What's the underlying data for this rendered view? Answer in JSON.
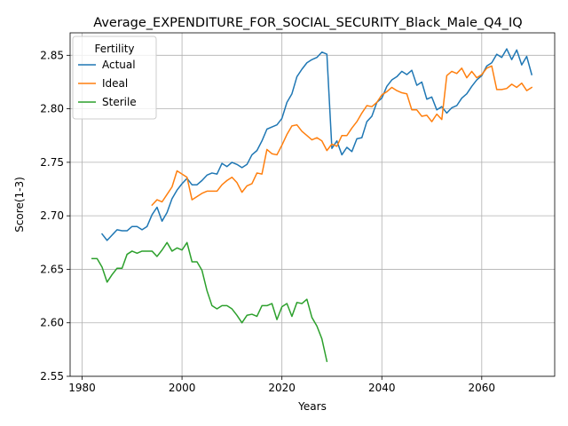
{
  "chart_data": {
    "type": "line",
    "title": "Average_EXPENDITURE_FOR_SOCIAL_SECURITY_Black_Male_Q4_IQ",
    "xlabel": "Years",
    "ylabel": "Score(1-3)",
    "xlim": [
      1977.6,
      2074.6
    ],
    "ylim": [
      2.55,
      2.871
    ],
    "xticks": [
      1980,
      2000,
      2020,
      2040,
      2060
    ],
    "yticks": [
      2.55,
      2.6,
      2.65,
      2.7,
      2.75,
      2.8,
      2.85
    ],
    "ytick_labels": [
      "2.55",
      "2.60",
      "2.65",
      "2.70",
      "2.75",
      "2.80",
      "2.85"
    ],
    "grid": true,
    "legend": {
      "title": "Fertility",
      "position": "top-left"
    },
    "series": [
      {
        "name": "Actual",
        "color": "#1f77b4",
        "x": [
          1984,
          1985,
          1986,
          1987,
          1988,
          1989,
          1990,
          1991,
          1992,
          1993,
          1994,
          1995,
          1996,
          1997,
          1998,
          1999,
          2000,
          2001,
          2002,
          2003,
          2004,
          2005,
          2006,
          2007,
          2008,
          2009,
          2010,
          2011,
          2012,
          2013,
          2014,
          2015,
          2016,
          2017,
          2018,
          2019,
          2020,
          2021,
          2022,
          2023,
          2024,
          2025,
          2026,
          2027,
          2028,
          2029,
          2030,
          2031,
          2032,
          2033,
          2034,
          2035,
          2036,
          2037,
          2038,
          2039,
          2040,
          2041,
          2042,
          2043,
          2044,
          2045,
          2046,
          2047,
          2048,
          2049,
          2050,
          2051,
          2052,
          2053,
          2054,
          2055,
          2056,
          2057,
          2058,
          2059,
          2060,
          2061,
          2062,
          2063,
          2064,
          2065,
          2066,
          2067,
          2068,
          2069,
          2070
        ],
        "values": [
          2.683,
          2.677,
          2.682,
          2.687,
          2.686,
          2.686,
          2.69,
          2.69,
          2.687,
          2.69,
          2.701,
          2.708,
          2.695,
          2.703,
          2.716,
          2.724,
          2.73,
          2.735,
          2.729,
          2.729,
          2.733,
          2.738,
          2.74,
          2.739,
          2.749,
          2.746,
          2.75,
          2.748,
          2.745,
          2.748,
          2.757,
          2.761,
          2.77,
          2.781,
          2.783,
          2.785,
          2.791,
          2.806,
          2.814,
          2.83,
          2.837,
          2.843,
          2.846,
          2.848,
          2.853,
          2.851,
          2.763,
          2.77,
          2.757,
          2.764,
          2.76,
          2.772,
          2.773,
          2.788,
          2.793,
          2.806,
          2.81,
          2.821,
          2.827,
          2.83,
          2.835,
          2.832,
          2.836,
          2.822,
          2.825,
          2.809,
          2.811,
          2.799,
          2.802,
          2.796,
          2.801,
          2.803,
          2.81,
          2.814,
          2.821,
          2.827,
          2.831,
          2.84,
          2.843,
          2.851,
          2.848,
          2.856,
          2.846,
          2.855,
          2.841,
          2.849,
          2.832
        ]
      },
      {
        "name": "Ideal",
        "color": "#ff7f0e",
        "x": [
          1994,
          1995,
          1996,
          1997,
          1998,
          1999,
          2000,
          2001,
          2002,
          2003,
          2004,
          2005,
          2006,
          2007,
          2008,
          2009,
          2010,
          2011,
          2012,
          2013,
          2014,
          2015,
          2016,
          2017,
          2018,
          2019,
          2020,
          2021,
          2022,
          2023,
          2024,
          2025,
          2026,
          2027,
          2028,
          2029,
          2030,
          2031,
          2032,
          2033,
          2034,
          2035,
          2036,
          2037,
          2038,
          2039,
          2040,
          2041,
          2042,
          2043,
          2044,
          2045,
          2046,
          2047,
          2048,
          2049,
          2050,
          2051,
          2052,
          2053,
          2054,
          2055,
          2056,
          2057,
          2058,
          2059,
          2060,
          2061,
          2062,
          2063,
          2064,
          2065,
          2066,
          2067,
          2068,
          2069,
          2070
        ],
        "values": [
          2.71,
          2.715,
          2.713,
          2.72,
          2.727,
          2.742,
          2.739,
          2.736,
          2.715,
          2.718,
          2.721,
          2.723,
          2.723,
          2.723,
          2.729,
          2.733,
          2.736,
          2.731,
          2.722,
          2.728,
          2.73,
          2.74,
          2.739,
          2.762,
          2.758,
          2.757,
          2.766,
          2.776,
          2.784,
          2.785,
          2.779,
          2.775,
          2.771,
          2.773,
          2.77,
          2.761,
          2.767,
          2.765,
          2.775,
          2.775,
          2.782,
          2.788,
          2.796,
          2.803,
          2.802,
          2.806,
          2.813,
          2.816,
          2.82,
          2.817,
          2.815,
          2.814,
          2.799,
          2.799,
          2.793,
          2.794,
          2.788,
          2.795,
          2.79,
          2.831,
          2.835,
          2.833,
          2.838,
          2.829,
          2.835,
          2.829,
          2.832,
          2.838,
          2.84,
          2.818,
          2.818,
          2.819,
          2.823,
          2.82,
          2.824,
          2.817,
          2.82
        ]
      },
      {
        "name": "Sterile",
        "color": "#2ca02c",
        "x": [
          1982,
          1983,
          1984,
          1985,
          1986,
          1987,
          1988,
          1989,
          1990,
          1991,
          1992,
          1993,
          1994,
          1995,
          1996,
          1997,
          1998,
          1999,
          2000,
          2001,
          2002,
          2003,
          2004,
          2005,
          2006,
          2007,
          2008,
          2009,
          2010,
          2011,
          2012,
          2013,
          2014,
          2015,
          2016,
          2017,
          2018,
          2019,
          2020,
          2021,
          2022,
          2023,
          2024,
          2025,
          2026,
          2027,
          2028,
          2029
        ],
        "values": [
          2.66,
          2.66,
          2.652,
          2.638,
          2.645,
          2.651,
          2.651,
          2.664,
          2.667,
          2.665,
          2.667,
          2.667,
          2.667,
          2.662,
          2.668,
          2.675,
          2.667,
          2.67,
          2.668,
          2.675,
          2.657,
          2.657,
          2.649,
          2.63,
          2.616,
          2.613,
          2.616,
          2.616,
          2.613,
          2.607,
          2.6,
          2.607,
          2.608,
          2.606,
          2.616,
          2.616,
          2.618,
          2.603,
          2.615,
          2.618,
          2.606,
          2.619,
          2.618,
          2.622,
          2.605,
          2.597,
          2.585,
          2.564
        ]
      }
    ]
  }
}
